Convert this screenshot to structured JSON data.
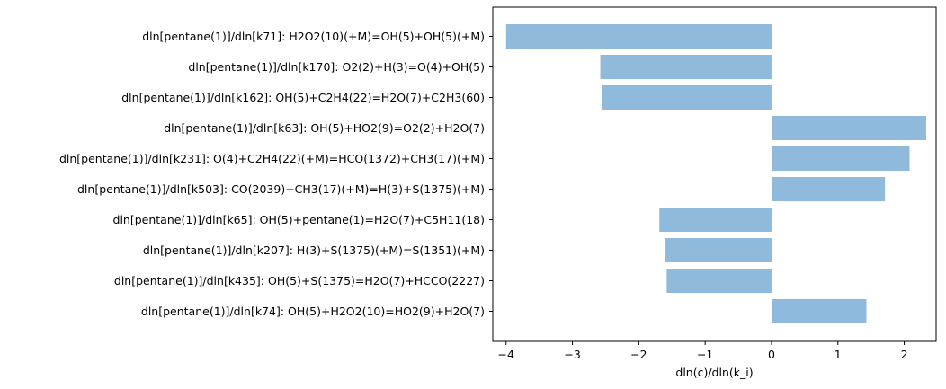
{
  "chart_data": {
    "type": "bar",
    "orientation": "horizontal",
    "categories": [
      "dln[pentane(1)]/dln[k71]: H2O2(10)(+M)=OH(5)+OH(5)(+M)",
      "dln[pentane(1)]/dln[k170]: O2(2)+H(3)=O(4)+OH(5)",
      "dln[pentane(1)]/dln[k162]: OH(5)+C2H4(22)=H2O(7)+C2H3(60)",
      "dln[pentane(1)]/dln[k63]: OH(5)+HO2(9)=O2(2)+H2O(7)",
      "dln[pentane(1)]/dln[k231]: O(4)+C2H4(22)(+M)=HCO(1372)+CH3(17)(+M)",
      "dln[pentane(1)]/dln[k503]: CO(2039)+CH3(17)(+M)=H(3)+S(1375)(+M)",
      "dln[pentane(1)]/dln[k65]: OH(5)+pentane(1)=H2O(7)+C5H11(18)",
      "dln[pentane(1)]/dln[k207]: H(3)+S(1375)(+M)=S(1351)(+M)",
      "dln[pentane(1)]/dln[k435]: OH(5)+S(1375)=H2O(7)+HCCO(2227)",
      "dln[pentane(1)]/dln[k74]: OH(5)+H2O2(10)=HO2(9)+H2O(7)"
    ],
    "values": [
      -4.0,
      -2.58,
      -2.56,
      2.33,
      2.08,
      1.71,
      -1.69,
      -1.6,
      -1.58,
      1.43
    ],
    "xlabel": "dln(c)/dln(k_i)",
    "ylabel": "",
    "xlim": [
      -4.2,
      2.48
    ],
    "xticks": [
      -4,
      -3,
      -2,
      -1,
      0,
      1,
      2
    ],
    "xtick_labels": [
      "−4",
      "−3",
      "−2",
      "−1",
      "0",
      "1",
      "2"
    ],
    "grid": false,
    "bar_color": "#8fbadc",
    "axis_color": "#000000"
  }
}
